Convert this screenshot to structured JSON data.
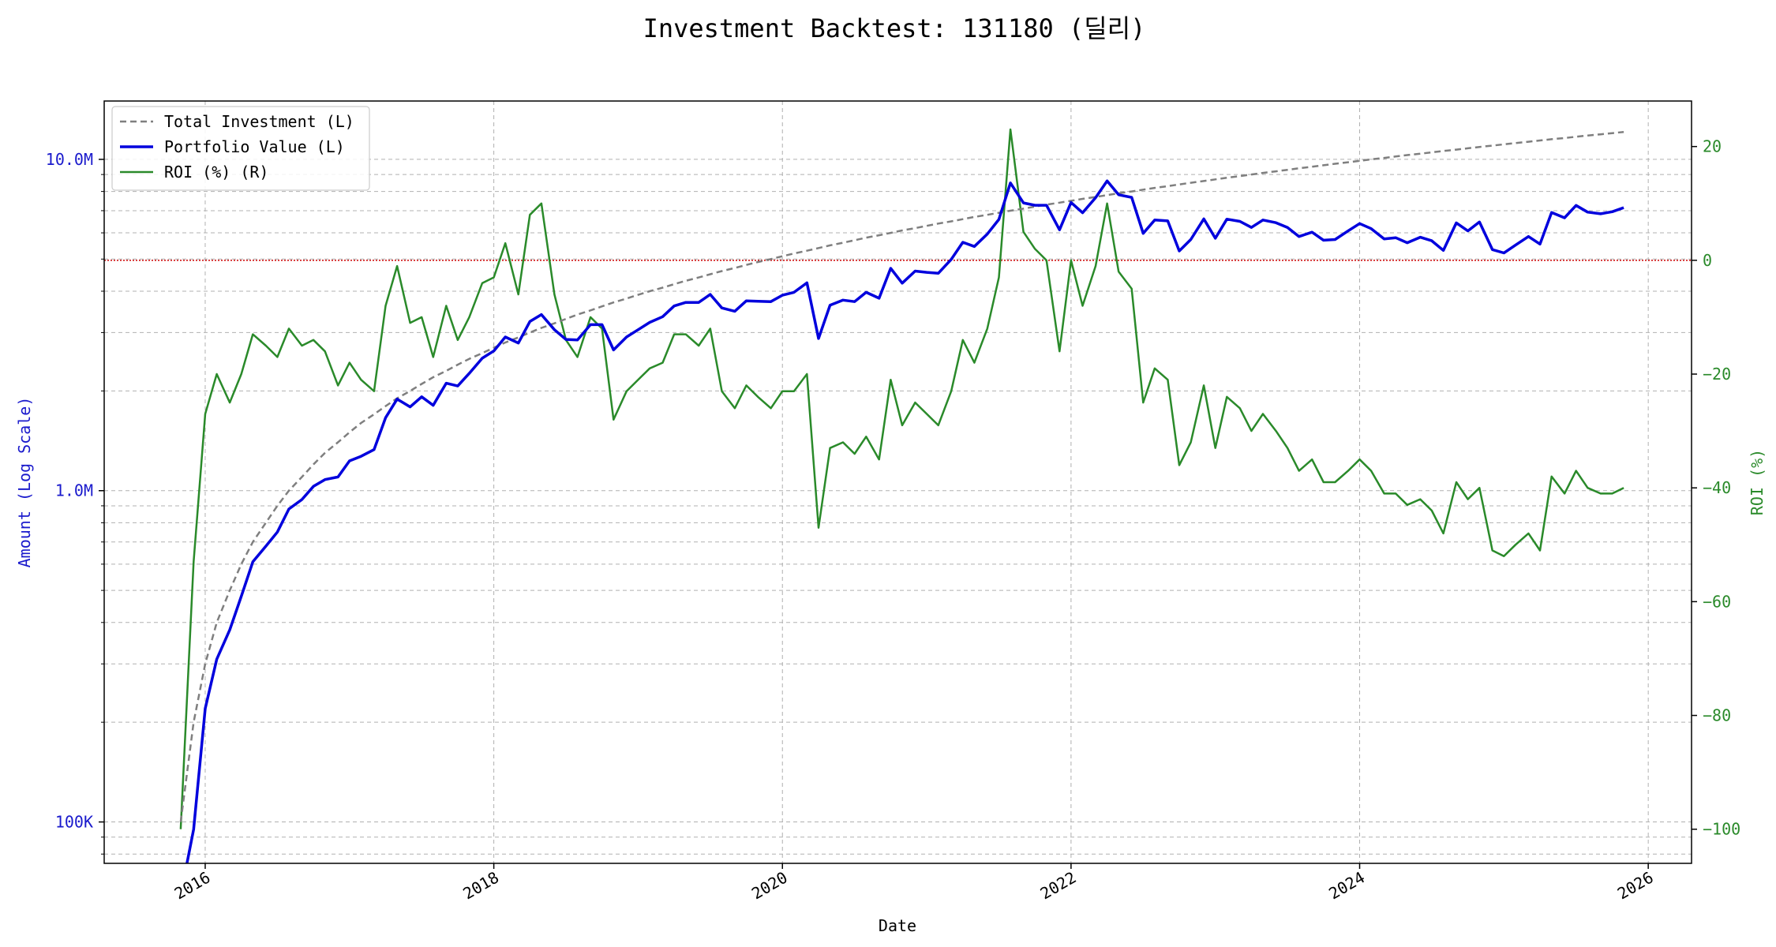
{
  "chart_data": {
    "type": "line",
    "title": "Investment Backtest: 131180 (딜리)",
    "xlabel": "Date",
    "ylabel_left": "Amount (Log Scale)",
    "ylabel_right": "ROI (%)",
    "x_tick_labels": [
      "2016",
      "2018",
      "2020",
      "2022",
      "2024",
      "2026"
    ],
    "x_ticks": [
      2016,
      2018,
      2020,
      2022,
      2024,
      2026
    ],
    "xlim": [
      2015.3,
      2026.3
    ],
    "y_left_scale": "log",
    "y_left_ticks": [
      100000,
      1000000,
      10000000
    ],
    "y_left_tick_labels": [
      "100K",
      "1.0M",
      "10.0M"
    ],
    "ylim_left": [
      75000,
      15000000
    ],
    "y_right_ticks": [
      -100,
      -80,
      -60,
      -40,
      -20,
      0,
      20
    ],
    "y_right_tick_labels": [
      "−100",
      "−80",
      "−60",
      "−40",
      "−20",
      "0",
      "20"
    ],
    "ylim_right": [
      -106,
      28
    ],
    "zero_line_roi": 0,
    "grid": true,
    "legend_position": "top-left",
    "colors": {
      "total_investment": "#7f7f7f",
      "portfolio_value": "#0000dd",
      "roi": "#2a8a2a",
      "zero_line": "#cc0000",
      "left_axis": "#1a1acc",
      "right_axis": "#2a8a2a"
    },
    "x": [
      2015.83,
      2015.92,
      2016.0,
      2016.08,
      2016.17,
      2016.25,
      2016.33,
      2016.42,
      2016.5,
      2016.58,
      2016.67,
      2016.75,
      2016.83,
      2016.92,
      2017.0,
      2017.08,
      2017.17,
      2017.25,
      2017.33,
      2017.42,
      2017.5,
      2017.58,
      2017.67,
      2017.75,
      2017.83,
      2017.92,
      2018.0,
      2018.08,
      2018.17,
      2018.25,
      2018.33,
      2018.42,
      2018.5,
      2018.58,
      2018.67,
      2018.75,
      2018.83,
      2018.92,
      2019.0,
      2019.08,
      2019.17,
      2019.25,
      2019.33,
      2019.42,
      2019.5,
      2019.58,
      2019.67,
      2019.75,
      2019.83,
      2019.92,
      2020.0,
      2020.08,
      2020.17,
      2020.25,
      2020.33,
      2020.42,
      2020.5,
      2020.58,
      2020.67,
      2020.75,
      2020.83,
      2020.92,
      2021.0,
      2021.08,
      2021.17,
      2021.25,
      2021.33,
      2021.42,
      2021.5,
      2021.58,
      2021.67,
      2021.75,
      2021.83,
      2021.92,
      2022.0,
      2022.08,
      2022.17,
      2022.25,
      2022.33,
      2022.42,
      2022.5,
      2022.58,
      2022.67,
      2022.75,
      2022.83,
      2022.92,
      2023.0,
      2023.08,
      2023.17,
      2023.25,
      2023.33,
      2023.42,
      2023.5,
      2023.58,
      2023.67,
      2023.75,
      2023.83,
      2023.92,
      2024.0,
      2024.08,
      2024.17,
      2024.25,
      2024.33,
      2024.42,
      2024.5,
      2024.58,
      2024.67,
      2024.75,
      2024.83,
      2024.92,
      2025.0,
      2025.08,
      2025.17,
      2025.25,
      2025.33,
      2025.42,
      2025.5,
      2025.58,
      2025.67,
      2025.75,
      2025.83
    ],
    "series": [
      {
        "name": "Total Investment (L)",
        "values": [
          100000,
          200000,
          300000,
          400000,
          500000,
          600000,
          700000,
          800000,
          900000,
          1000000,
          1100000,
          1200000,
          1300000,
          1400000,
          1500000,
          1600000,
          1700000,
          1800000,
          1900000,
          2000000,
          2100000,
          2200000,
          2300000,
          2400000,
          2500000,
          2600000,
          2700000,
          2800000,
          2900000,
          3000000,
          3100000,
          3200000,
          3300000,
          3400000,
          3500000,
          3600000,
          3700000,
          3800000,
          3900000,
          4000000,
          4100000,
          4200000,
          4300000,
          4400000,
          4500000,
          4600000,
          4700000,
          4800000,
          4900000,
          5000000,
          5100000,
          5200000,
          5300000,
          5400000,
          5500000,
          5600000,
          5700000,
          5800000,
          5900000,
          6000000,
          6100000,
          6200000,
          6300000,
          6400000,
          6500000,
          6600000,
          6700000,
          6800000,
          6900000,
          7000000,
          7100000,
          7200000,
          7300000,
          7400000,
          7500000,
          7600000,
          7700000,
          7800000,
          7900000,
          8000000,
          8100000,
          8200000,
          8300000,
          8400000,
          8500000,
          8600000,
          8700000,
          8800000,
          8900000,
          9000000,
          9100000,
          9200000,
          9300000,
          9400000,
          9500000,
          9600000,
          9700000,
          9800000,
          9900000,
          10000000,
          10100000,
          10200000,
          10300000,
          10400000,
          10500000,
          10600000,
          10700000,
          10800000,
          10900000,
          11000000,
          11100000,
          11200000,
          11300000,
          11400000,
          11500000,
          11600000,
          11700000,
          11800000,
          11900000,
          12000000,
          12100000
        ]
      },
      {
        "name": "Portfolio Value (L)",
        "values": [
          60000,
          95000,
          220000,
          310000,
          380000,
          480000,
          610000,
          680000,
          750000,
          880000,
          940000,
          1030000,
          1080000,
          1100000,
          1230000,
          1270000,
          1330000,
          1660000,
          1890000,
          1790000,
          1920000,
          1810000,
          2110000,
          2070000,
          2260000,
          2510000,
          2640000,
          2910000,
          2790000,
          3240000,
          3400000,
          3060000,
          2860000,
          2850000,
          3170000,
          3170000,
          2660000,
          2910000,
          3060000,
          3220000,
          3350000,
          3610000,
          3700000,
          3700000,
          3910000,
          3560000,
          3480000,
          3740000,
          3730000,
          3720000,
          3890000,
          3970000,
          4240000,
          2880000,
          3630000,
          3760000,
          3720000,
          3970000,
          3810000,
          4690000,
          4230000,
          4600000,
          4560000,
          4530000,
          4990000,
          5620000,
          5460000,
          5950000,
          6590000,
          8490000,
          7390000,
          7270000,
          7270000,
          6130000,
          7410000,
          6900000,
          7660000,
          8610000,
          7820000,
          7680000,
          5980000,
          6560000,
          6520000,
          5290000,
          5730000,
          6610000,
          5780000,
          6600000,
          6500000,
          6230000,
          6560000,
          6440000,
          6230000,
          5850000,
          6030000,
          5700000,
          5730000,
          6080000,
          6400000,
          6180000,
          5750000,
          5800000,
          5600000,
          5820000,
          5680000,
          5310000,
          6430000,
          6080000,
          6470000,
          5340000,
          5220000,
          5510000,
          5850000,
          5550000,
          6910000,
          6660000,
          7260000,
          6930000,
          6850000,
          6950000,
          7150000
        ]
      },
      {
        "name": "ROI (%) (R)",
        "values": [
          -100,
          -53,
          -27,
          -20,
          -25,
          -20,
          -13,
          -15,
          -17,
          -12,
          -15,
          -14,
          -16,
          -22,
          -18,
          -21,
          -23,
          -8,
          -1,
          -11,
          -10,
          -17,
          -8,
          -14,
          -10,
          -4,
          -3,
          3,
          -6,
          8,
          10,
          -6,
          -14,
          -17,
          -10,
          -12,
          -28,
          -23,
          -21,
          -19,
          -18,
          -13,
          -13,
          -15,
          -12,
          -23,
          -26,
          -22,
          -24,
          -26,
          -23,
          -23,
          -20,
          -47,
          -33,
          -32,
          -34,
          -31,
          -35,
          -21,
          -29,
          -25,
          -27,
          -29,
          -23,
          -14,
          -18,
          -12,
          -3,
          23,
          5,
          2,
          0,
          -16,
          0,
          -8,
          -1,
          10,
          -2,
          -5,
          -25,
          -19,
          -21,
          -36,
          -32,
          -22,
          -33,
          -24,
          -26,
          -30,
          -27,
          -30,
          -33,
          -37,
          -35,
          -39,
          -39,
          -37,
          -35,
          -37,
          -41,
          -41,
          -43,
          -42,
          -44,
          -48,
          -39,
          -42,
          -40,
          -51,
          -52,
          -50,
          -48,
          -51,
          -38,
          -41,
          -37,
          -40,
          -41,
          -41,
          -40
        ]
      }
    ]
  }
}
